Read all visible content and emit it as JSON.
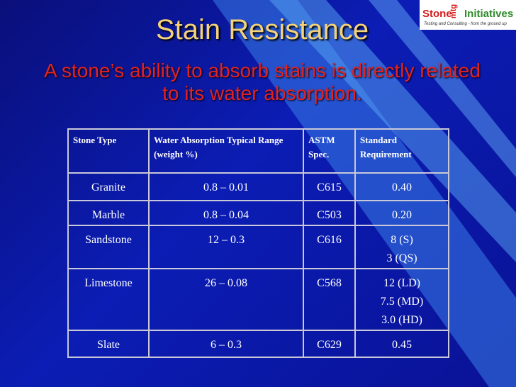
{
  "logo": {
    "brand": "Stone",
    "vertical": "mtg",
    "name": "Initiatives",
    "tagline": "Testing and Consulting - from the ground up"
  },
  "title": "Stain Resistance",
  "subtitle": "A stone’s ability to absorb stains is directly related to its water absorption.",
  "table": {
    "header": [
      "Stone Type",
      "Water Absorption Typical Range (weight %)",
      "ASTM Spec.",
      "Standard Requirement"
    ],
    "rows": [
      [
        "Granite",
        "0.8 – 0.01",
        "C615",
        [
          "0.40"
        ]
      ],
      [
        "Marble",
        "0.8 – 0.04",
        "C503",
        [
          "0.20"
        ]
      ],
      [
        "Sandstone",
        "12 – 0.3",
        "C616",
        [
          "8 (S)",
          "3 (QS)"
        ]
      ],
      [
        "Limestone",
        "26 – 0.08",
        "C568",
        [
          "12 (LD)",
          "7.5 (MD)",
          "3.0 (HD)"
        ]
      ],
      [
        "Slate",
        "6 – 0.3",
        "C629",
        [
          "0.45"
        ]
      ]
    ]
  }
}
